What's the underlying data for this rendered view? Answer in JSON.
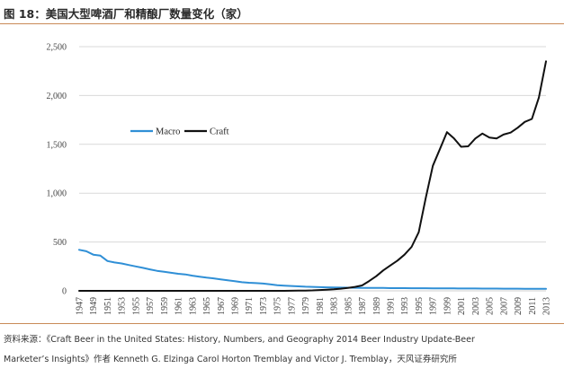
{
  "figure": {
    "title": "图 18：美国大型啤酒厂和精酿厂数量变化（家）",
    "source_line1": "资料来源：《Craft Beer in the United States: History, Numbers, and Geography 2014 Beer Industry Update-Beer",
    "source_line2": "Marketer’s Insights》作者 Kenneth G. Elzinga   Carol Horton Tremblay and Victor J. Tremblay，天风证券研究所"
  },
  "colors": {
    "accent_rule": "#c98a57",
    "macro": "#2f8fd6",
    "craft": "#111111",
    "grid": "#d9d9d9"
  },
  "chart_data": {
    "type": "line",
    "title": "",
    "xlabel": "",
    "ylabel": "",
    "xlim": [
      1947,
      2013
    ],
    "ylim": [
      0,
      2500
    ],
    "yticks": [
      0,
      500,
      1000,
      1500,
      2000,
      2500
    ],
    "ytick_labels": [
      "0",
      "500",
      "1,000",
      "1,500",
      "2,000",
      "2,500"
    ],
    "xticks": [
      1947,
      1949,
      1951,
      1953,
      1955,
      1957,
      1959,
      1961,
      1963,
      1965,
      1967,
      1969,
      1971,
      1973,
      1975,
      1977,
      1979,
      1981,
      1983,
      1985,
      1987,
      1989,
      1991,
      1993,
      1995,
      1997,
      1999,
      2001,
      2003,
      2005,
      2007,
      2009,
      2011,
      2013
    ],
    "grid": true,
    "legend": "upper-left inside plot",
    "series": [
      {
        "name": "Macro",
        "x": [
          1947,
          1948,
          1949,
          1950,
          1951,
          1952,
          1953,
          1954,
          1955,
          1956,
          1957,
          1958,
          1959,
          1960,
          1961,
          1962,
          1963,
          1964,
          1965,
          1966,
          1967,
          1968,
          1969,
          1970,
          1971,
          1972,
          1973,
          1974,
          1975,
          1976,
          1977,
          1978,
          1979,
          1980,
          1981,
          1982,
          1983,
          1984,
          1985,
          1986,
          1987,
          1988,
          1989,
          1990,
          1991,
          1992,
          1993,
          1994,
          1995,
          1996,
          1997,
          1998,
          1999,
          2000,
          2001,
          2002,
          2003,
          2004,
          2005,
          2006,
          2007,
          2008,
          2009,
          2010,
          2011,
          2012,
          2013
        ],
        "values": [
          420,
          405,
          370,
          360,
          305,
          290,
          280,
          265,
          250,
          235,
          220,
          205,
          195,
          185,
          175,
          168,
          155,
          145,
          135,
          128,
          118,
          108,
          98,
          88,
          83,
          79,
          74,
          66,
          58,
          53,
          50,
          46,
          42,
          40,
          38,
          36,
          34,
          33,
          32,
          31,
          30,
          30,
          29,
          29,
          28,
          28,
          28,
          27,
          27,
          27,
          26,
          26,
          25,
          25,
          24,
          24,
          24,
          23,
          23,
          23,
          22,
          22,
          22,
          21,
          21,
          21,
          20
        ]
      },
      {
        "name": "Craft",
        "x": [
          1947,
          1950,
          1955,
          1960,
          1965,
          1970,
          1975,
          1976,
          1977,
          1978,
          1979,
          1980,
          1981,
          1982,
          1983,
          1984,
          1985,
          1986,
          1987,
          1988,
          1989,
          1990,
          1991,
          1992,
          1993,
          1994,
          1995,
          1996,
          1997,
          1998,
          1999,
          2000,
          2001,
          2002,
          2003,
          2004,
          2005,
          2006,
          2007,
          2008,
          2009,
          2010,
          2011,
          2012,
          2013
        ],
        "values": [
          0,
          0,
          0,
          0,
          0,
          0,
          0,
          0,
          1,
          2,
          3,
          5,
          8,
          12,
          16,
          22,
          30,
          40,
          55,
          100,
          150,
          210,
          260,
          310,
          370,
          450,
          600,
          950,
          1280,
          1450,
          1625,
          1560,
          1475,
          1480,
          1560,
          1610,
          1570,
          1560,
          1600,
          1620,
          1670,
          1730,
          1760,
          1980,
          2350
        ]
      }
    ]
  }
}
